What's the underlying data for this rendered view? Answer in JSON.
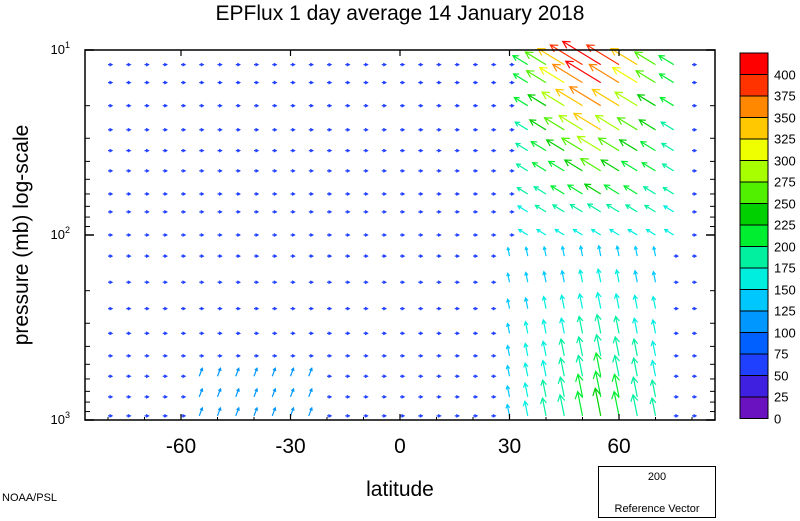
{
  "chart_data": {
    "type": "quiver",
    "title": "EPFlux  1 day average  14 January   2018",
    "xlabel": "latitude",
    "ylabel": "pressure (mb)  log-scale",
    "xlim": [
      -90,
      90
    ],
    "x_ticks": [
      "-60",
      "-30",
      "0",
      "30",
      "60"
    ],
    "x_tick_values": [
      -60,
      -30,
      0,
      30,
      60
    ],
    "y_scale": "log",
    "y_ticks": [
      {
        "value": 10,
        "base": "10",
        "exp": "1"
      },
      {
        "value": 100,
        "base": "10",
        "exp": "2"
      },
      {
        "value": 1000,
        "base": "10",
        "exp": "3"
      }
    ],
    "ylim": [
      1000,
      10
    ],
    "colorbar": {
      "labels": [
        "400",
        "375",
        "350",
        "325",
        "300",
        "275",
        "250",
        "225",
        "200",
        "175",
        "150",
        "125",
        "100",
        "75",
        "50",
        "25",
        "0"
      ],
      "colors": [
        "#ff0000",
        "#ff3300",
        "#ff8800",
        "#ffc800",
        "#f0ff00",
        "#a8ff00",
        "#50f000",
        "#00d000",
        "#00ee30",
        "#00f0a0",
        "#00eee0",
        "#00c8ff",
        "#0098ff",
        "#0060ff",
        "#2040ff",
        "#4020e0",
        "#6a12c0"
      ]
    },
    "reference_vector": {
      "value": "200",
      "label": "Reference Vector",
      "color": "#33ee66"
    },
    "grid": false
  },
  "footer": {
    "credit": "NOAA/PSL"
  }
}
